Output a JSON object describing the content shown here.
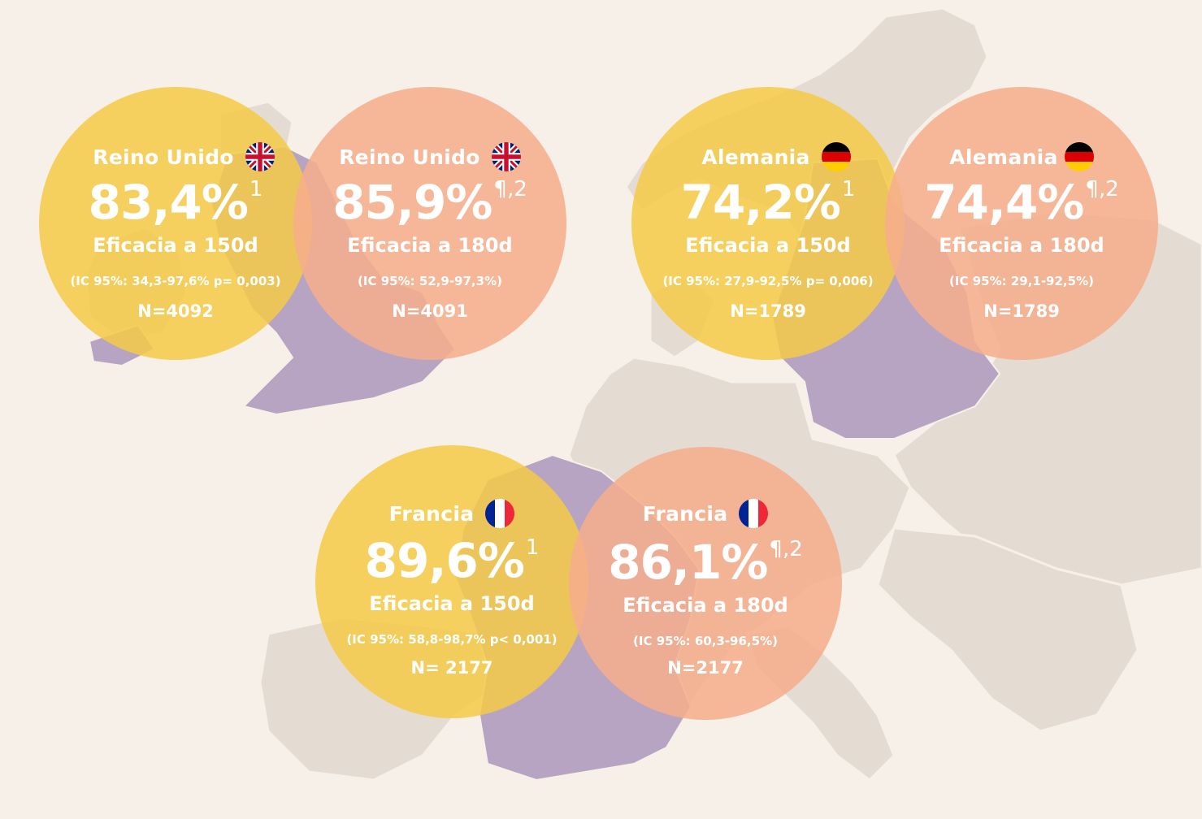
{
  "cards": {
    "uk150": {
      "country": "Reino Unido",
      "percent": "83,4%",
      "sup": "1",
      "efficacy": "Eficacia a 150d",
      "ci": "(IC 95%: 34,3-97,6% p= 0,003)",
      "n": "N=4092",
      "flag": "uk-flag-icon",
      "color": "#f4cb48"
    },
    "uk180": {
      "country": "Reino Unido",
      "percent": "85,9%",
      "sup": "¶,2",
      "efficacy": "Eficacia a 180d",
      "ci": "(IC 95%: 52,9-97,3%)",
      "n": "N=4091",
      "flag": "uk-flag-icon",
      "color": "#f6ad8c"
    },
    "de150": {
      "country": "Alemania",
      "percent": "74,2%",
      "sup": "1",
      "efficacy": "Eficacia a 150d",
      "ci": "(IC 95%: 27,9-92,5% p= 0,006)",
      "n": "N=1789",
      "flag": "germany-flag-icon",
      "color": "#f4cb48"
    },
    "de180": {
      "country": "Alemania",
      "percent": "74,4%",
      "sup": "¶,2",
      "efficacy": "Eficacia a 180d",
      "ci": "(IC 95%: 29,1-92,5%)",
      "n": "N=1789",
      "flag": "germany-flag-icon",
      "color": "#f6ad8c"
    },
    "fr150": {
      "country": "Francia",
      "percent": "89,6%",
      "sup": "1",
      "efficacy": "Eficacia a 150d",
      "ci": "(IC 95%: 58,8-98,7% p< 0,001)",
      "n": "N= 2177",
      "flag": "france-flag-icon",
      "color": "#f4cb48"
    },
    "fr180": {
      "country": "Francia",
      "percent": "86,1%",
      "sup": "¶,2",
      "efficacy": "Eficacia a 180d",
      "ci": "(IC 95%: 60,3-96,5%)",
      "n": "N=2177",
      "flag": "france-flag-icon",
      "color": "#f6ad8c"
    }
  },
  "colors": {
    "background": "#f7f0e8",
    "land": "#e4dcd3",
    "highlighted_country": "#b7a3c2"
  }
}
